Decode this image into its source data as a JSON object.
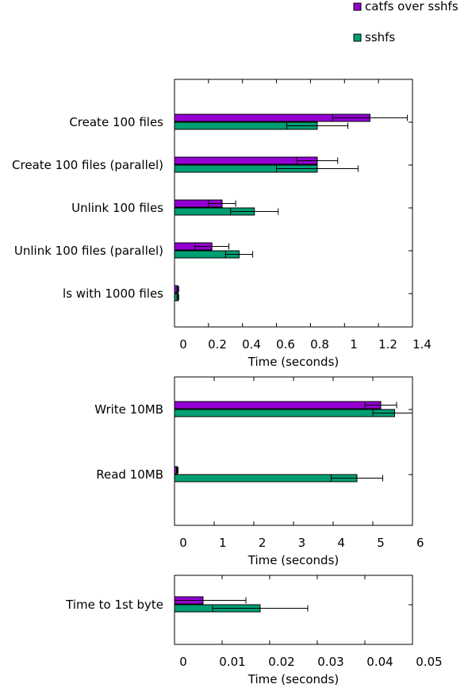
{
  "legend": [
    {
      "name": "catfs over sshfs",
      "color": "#9400d3"
    },
    {
      "name": "sshfs",
      "color": "#009e73"
    }
  ],
  "chart_data": [
    {
      "type": "bar",
      "orientation": "horizontal",
      "categories": [
        "Create 100 files",
        "Create 100 files (parallel)",
        "Unlink 100 files",
        "Unlink 100 files (parallel)",
        "ls with 1000 files"
      ],
      "series": [
        {
          "name": "catfs over sshfs",
          "values": [
            1.15,
            0.84,
            0.28,
            0.22,
            0.02
          ],
          "errors": [
            0.22,
            0.12,
            0.08,
            0.1,
            0.005
          ]
        },
        {
          "name": "sshfs",
          "values": [
            0.84,
            0.84,
            0.47,
            0.38,
            0.02
          ],
          "errors": [
            0.18,
            0.24,
            0.14,
            0.08,
            0.005
          ]
        }
      ],
      "xlabel": "Time (seconds)",
      "xlim": [
        0,
        1.4
      ],
      "xticks": [
        "0",
        "0.2",
        "0.4",
        "0.6",
        "0.8",
        "1",
        "1.2",
        "1.4"
      ]
    },
    {
      "type": "bar",
      "orientation": "horizontal",
      "categories": [
        "Write 10MB",
        "Read 10MB"
      ],
      "series": [
        {
          "name": "catfs over sshfs",
          "values": [
            5.2,
            0.07
          ],
          "errors": [
            0.4,
            0.02
          ]
        },
        {
          "name": "sshfs",
          "values": [
            5.55,
            4.6
          ],
          "errors": [
            0.55,
            0.65
          ]
        }
      ],
      "xlabel": "Time (seconds)",
      "xlim": [
        0,
        6
      ],
      "xticks": [
        "0",
        "1",
        "2",
        "3",
        "4",
        "5",
        "6"
      ]
    },
    {
      "type": "bar",
      "orientation": "horizontal",
      "categories": [
        "Time to 1st byte"
      ],
      "series": [
        {
          "name": "catfs over sshfs",
          "values": [
            0.006
          ],
          "errors": [
            0.009
          ]
        },
        {
          "name": "sshfs",
          "values": [
            0.018
          ],
          "errors": [
            0.01
          ]
        }
      ],
      "xlabel": "Time (seconds)",
      "xlim": [
        0,
        0.05
      ],
      "xticks": [
        "0",
        "0.01",
        "0.02",
        "0.03",
        "0.04",
        "0.05"
      ]
    }
  ]
}
